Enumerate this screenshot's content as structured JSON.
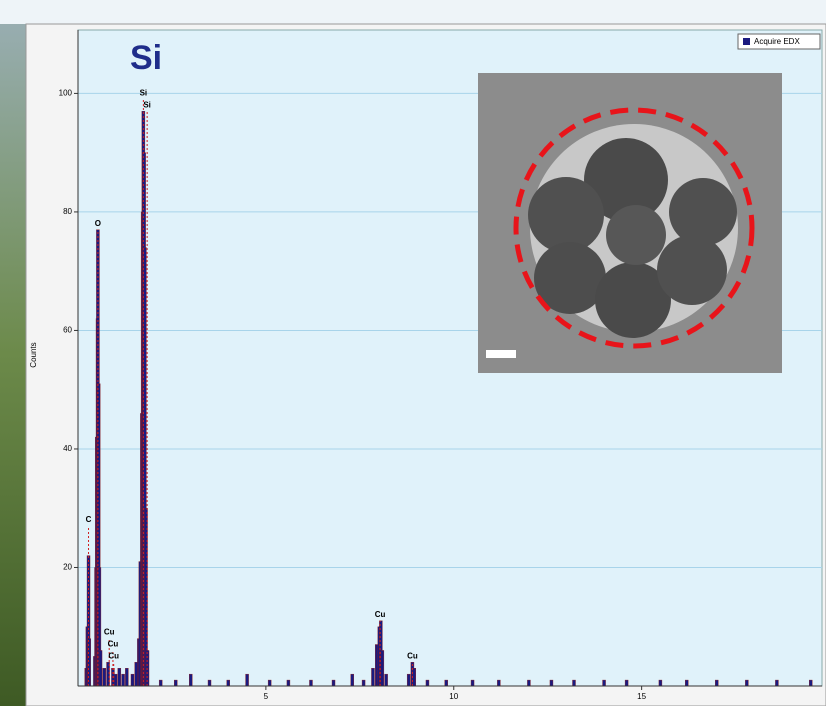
{
  "chart_data": {
    "type": "spectrum",
    "title": "Si",
    "y_label": "Counts",
    "legend": "Acquire EDX",
    "color": "#1a1a80",
    "grid": true,
    "xlim": [
      0,
      19.8
    ],
    "ylim": [
      0,
      110.7
    ],
    "xticks": [
      5,
      10,
      15
    ],
    "yticks": [
      20,
      40,
      60,
      80,
      100
    ],
    "x": [
      0.22,
      0.25,
      0.28,
      0.3,
      0.45,
      0.48,
      0.5,
      0.52,
      0.53,
      0.55,
      0.57,
      0.6,
      0.7,
      0.8,
      0.93,
      1.0,
      1.1,
      1.2,
      1.3,
      1.45,
      1.55,
      1.62,
      1.66,
      1.7,
      1.72,
      1.74,
      1.76,
      1.78,
      1.81,
      1.85,
      2.2,
      2.6,
      3.0,
      3.5,
      4.0,
      4.5,
      5.1,
      5.6,
      6.2,
      6.8,
      7.3,
      7.6,
      7.85,
      7.95,
      8.02,
      8.06,
      8.1,
      8.2,
      8.8,
      8.9,
      8.95,
      9.3,
      9.8,
      10.5,
      11.2,
      12.0,
      12.6,
      13.2,
      14.0,
      14.6,
      15.5,
      16.2,
      17.0,
      17.8,
      18.6,
      19.5
    ],
    "values": [
      3,
      10,
      22,
      8,
      5,
      20,
      42,
      62,
      77,
      51,
      20,
      6,
      3,
      4,
      3,
      2,
      3,
      2,
      3,
      2,
      4,
      8,
      21,
      46,
      80,
      97,
      90,
      74,
      30,
      6,
      1,
      1,
      2,
      1,
      1,
      2,
      1,
      1,
      1,
      1,
      2,
      1,
      3,
      7,
      10,
      11,
      6,
      2,
      2,
      4,
      3,
      1,
      1,
      1,
      1,
      1,
      1,
      1,
      1,
      1,
      1,
      1,
      1,
      1,
      1,
      1
    ],
    "peak_labels": [
      {
        "label": "C",
        "x": 0.28,
        "y": 27
      },
      {
        "label": "O",
        "x": 0.53,
        "y": 77
      },
      {
        "label": "Cu",
        "x": 0.83,
        "y": 8
      },
      {
        "label": "Cu",
        "x": 0.93,
        "y": 6
      },
      {
        "label": "Cu",
        "x": 0.95,
        "y": 4
      },
      {
        "label": "Si",
        "x": 1.74,
        "y": 99
      },
      {
        "label": "Si",
        "x": 1.84,
        "y": 97
      },
      {
        "label": "Cu",
        "x": 8.04,
        "y": 11
      },
      {
        "label": "Cu",
        "x": 8.9,
        "y": 4
      }
    ]
  }
}
